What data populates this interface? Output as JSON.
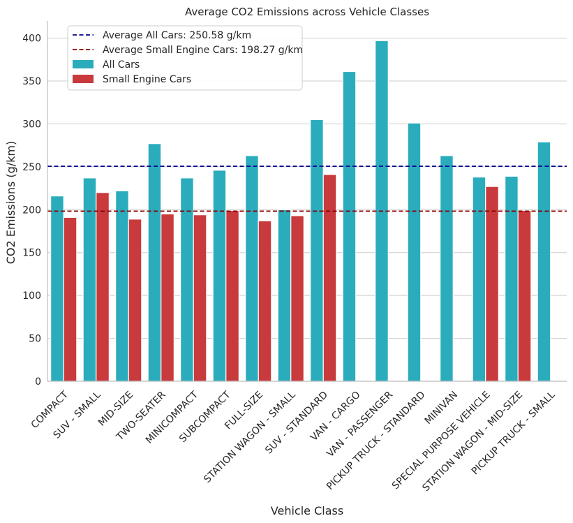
{
  "chart_data": {
    "type": "bar",
    "title": "Average CO2 Emissions across Vehicle Classes",
    "xlabel": "Vehicle Class",
    "ylabel": "CO2 Emissions (g/km)",
    "ylim": [
      0,
      420
    ],
    "yticks": [
      0,
      50,
      100,
      150,
      200,
      250,
      300,
      350,
      400
    ],
    "grid": "horizontal",
    "legend_position": "top-left",
    "categories": [
      "COMPACT",
      "SUV - SMALL",
      "MID-SIZE",
      "TWO-SEATER",
      "MINICOMPACT",
      "SUBCOMPACT",
      "FULL-SIZE",
      "STATION WAGON - SMALL",
      "SUV - STANDARD",
      "VAN - CARGO",
      "VAN - PASSENGER",
      "PICKUP TRUCK - STANDARD",
      "MINIVAN",
      "SPECIAL PURPOSE VEHICLE",
      "STATION WAGON - MID-SIZE",
      "PICKUP TRUCK - SMALL"
    ],
    "series": [
      {
        "name": "All Cars",
        "color": "#2aacbc",
        "values": [
          216,
          237,
          222,
          277,
          237,
          246,
          263,
          200,
          305,
          361,
          397,
          301,
          263,
          238,
          239,
          279
        ]
      },
      {
        "name": "Small Engine Cars",
        "color": "#c83a3c",
        "values": [
          191,
          220,
          189,
          195,
          194,
          199,
          187,
          193,
          241,
          null,
          null,
          null,
          null,
          227,
          199,
          null
        ]
      }
    ],
    "reference_lines": [
      {
        "label": "Average All Cars: 250.58 g/km",
        "value": 250.58,
        "color": "#00008b",
        "style": "dashed"
      },
      {
        "label": "Average Small Engine Cars: 198.27 g/km",
        "value": 198.27,
        "color": "#8b0000",
        "style": "dashed"
      }
    ]
  }
}
